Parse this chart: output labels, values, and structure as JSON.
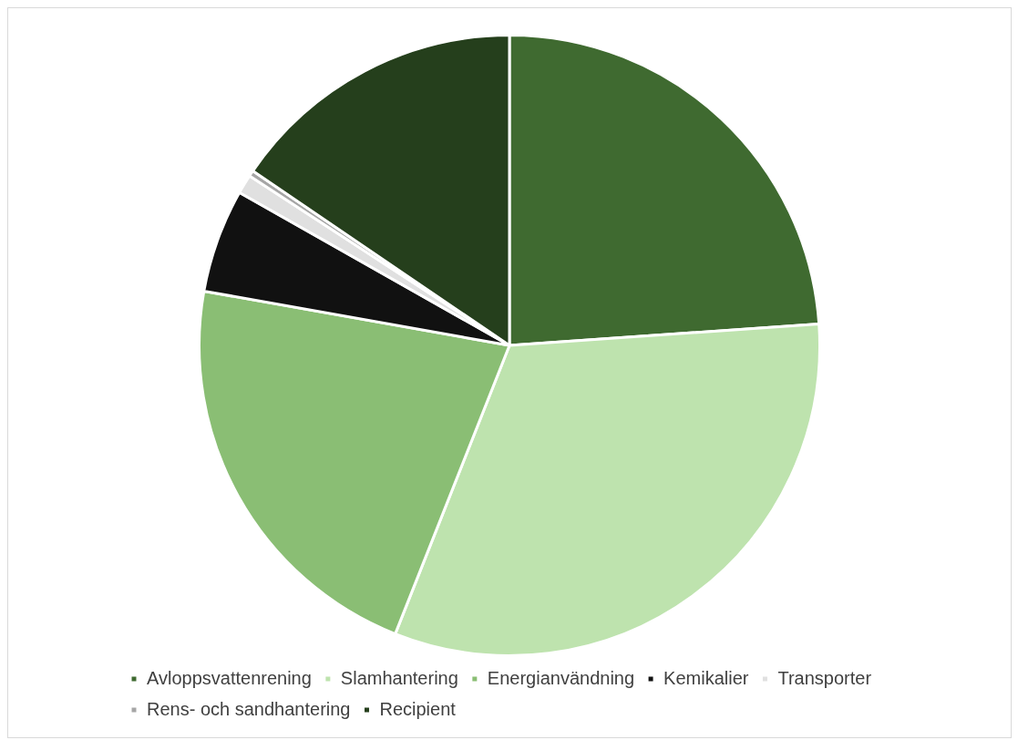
{
  "chart_data": {
    "type": "pie",
    "categories": [
      "Avloppsvattenrening",
      "Slamhantering",
      "Energianvändning",
      "Kemikalier",
      "Transporter",
      "Rens- och sandhantering",
      "Recipient"
    ],
    "values": [
      23.9,
      32.1,
      21.8,
      5.4,
      1.0,
      0.3,
      15.5
    ],
    "colors": [
      "#3f6a30",
      "#bee3ae",
      "#8abe74",
      "#111111",
      "#e0e0e0",
      "#a6a6a6",
      "#253f1c"
    ],
    "legend": "bottom"
  }
}
